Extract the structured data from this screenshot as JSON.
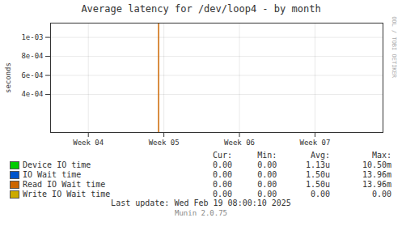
{
  "chart_data": {
    "type": "line",
    "title": "Average latency for /dev/loop4 - by month",
    "ylabel": "seconds",
    "xlim": [
      3.5,
      7.9
    ],
    "xticks": [
      {
        "value": 4,
        "label": "Week 04"
      },
      {
        "value": 5,
        "label": "Week 05"
      },
      {
        "value": 6,
        "label": "Week 06"
      },
      {
        "value": 7,
        "label": "Week 07"
      }
    ],
    "ylim": [
      0,
      0.00115
    ],
    "yticks": [
      {
        "value": 0.0004,
        "label": "4e-04"
      },
      {
        "value": 0.0006,
        "label": "6e-04"
      },
      {
        "value": 0.0008,
        "label": "8e-04"
      },
      {
        "value": 0.001,
        "label": "1e-03"
      }
    ],
    "grid": true,
    "vlines": [
      {
        "x": 4.93,
        "color": "#cc6600"
      }
    ],
    "hlines": [
      {
        "y": 0,
        "color": "#ccaa00"
      }
    ],
    "stats_headers": [
      "Cur:",
      "Min:",
      "Avg:",
      "Max:"
    ],
    "series": [
      {
        "name": "Device IO time",
        "color": "#00cc00",
        "stats": [
          "0.00",
          "0.00",
          "1.13u",
          "10.50m"
        ]
      },
      {
        "name": "IO Wait time",
        "color": "#0055cc",
        "stats": [
          "0.00",
          "0.00",
          "1.50u",
          "13.96m"
        ]
      },
      {
        "name": "Read IO Wait time",
        "color": "#cc6600",
        "stats": [
          "0.00",
          "0.00",
          "1.50u",
          "13.96m"
        ]
      },
      {
        "name": "Write IO Wait time",
        "color": "#ccaa00",
        "stats": [
          "0.00",
          "0.00",
          "0.00",
          "0.00"
        ]
      }
    ],
    "footer": [
      "Last update: Wed Feb 19 08:00:10 2025",
      "Munin 2.0.75"
    ],
    "side_label": "RRDTOOL / TOBI OETIKER"
  }
}
